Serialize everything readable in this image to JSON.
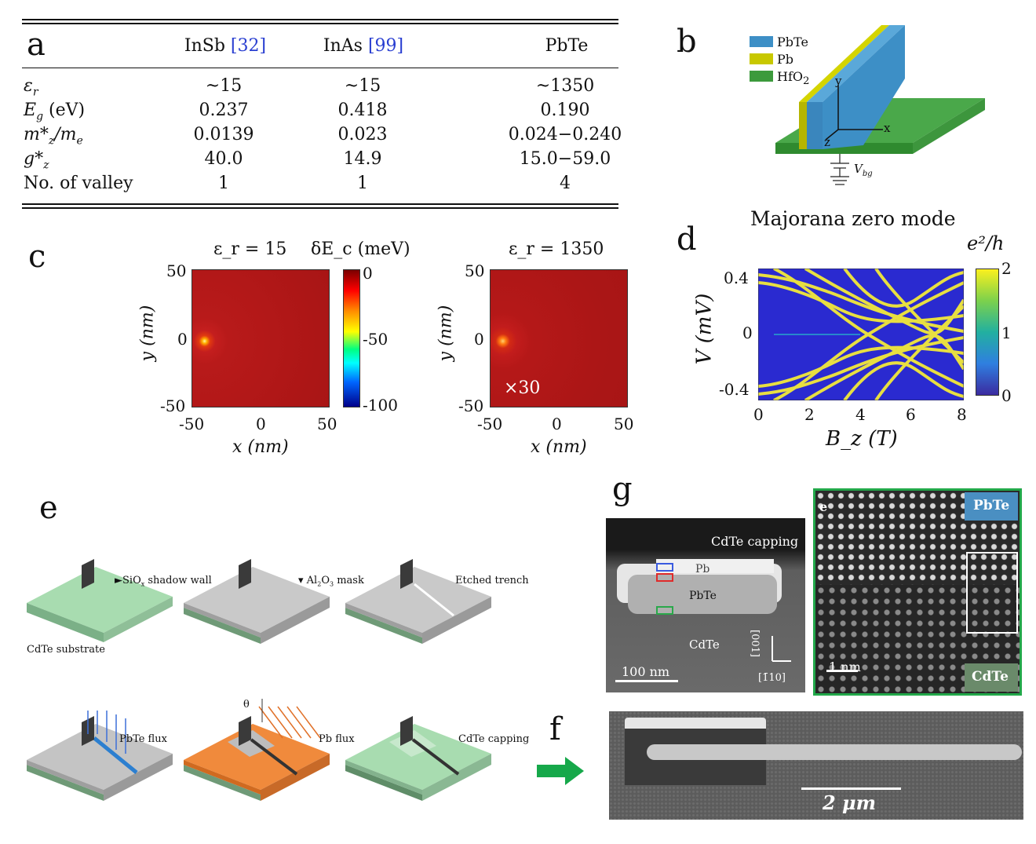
{
  "panel_a": {
    "letter": "a",
    "headers": [
      "InSb",
      "[32]",
      "InAs",
      "[99]",
      "PbTe"
    ],
    "rows": [
      {
        "label": "ε",
        "sub": "r",
        "tail": "",
        "v1": "~15",
        "v2": "~15",
        "v3": "~1350"
      },
      {
        "label": "E",
        "sub": "g",
        "tail": " (eV)",
        "v1": "0.237",
        "v2": "0.418",
        "v3": "0.190"
      },
      {
        "label": "m*",
        "sub": "z",
        "tail": "/m",
        "tail_sub": "e",
        "v1": "0.0139",
        "v2": "0.023",
        "v3": "0.024−0.240"
      },
      {
        "label": "g*",
        "sub": "z",
        "tail": "",
        "v1": "40.0",
        "v2": "14.9",
        "v3": "15.0−59.0"
      },
      {
        "label": "No. of valley",
        "sub": "",
        "tail": "",
        "v1": "1",
        "v2": "1",
        "v3": "4"
      }
    ]
  },
  "panel_b": {
    "letter": "b",
    "legend": [
      "PbTe",
      "Pb",
      "HfO",
      "2"
    ],
    "axes": [
      "y",
      "x",
      "z"
    ],
    "gate": "V",
    "gate_sub": "bg",
    "colors": {
      "pbte": "#3d8fc6",
      "pb": "#c8c800",
      "hfo2": "#3c9a3c"
    }
  },
  "panel_c": {
    "letter": "c",
    "left_title": "ε_r = 15",
    "right_title": "ε_r = 1350",
    "cbar_title": "δE_c (meV)",
    "cbar_ticks": [
      "0",
      "-50",
      "-100"
    ],
    "x_ticks": [
      "-50",
      "0",
      "50"
    ],
    "y_ticks": [
      "50",
      "0",
      "-50"
    ],
    "xlabel": "x (nm)",
    "ylabel": "y (nm)",
    "multiplier": "×30"
  },
  "panel_d": {
    "letter": "d",
    "title": "Majorana zero mode",
    "cbar_title": "e²/h",
    "cbar_ticks": [
      "2",
      "1",
      "0"
    ],
    "x_ticks": [
      "0",
      "2",
      "4",
      "6",
      "8"
    ],
    "y_ticks": [
      "0.4",
      "0",
      "-0.4"
    ],
    "xlabel": "B_z (T)",
    "ylabel": "V (mV)"
  },
  "panel_e": {
    "letter": "e",
    "labels": [
      "SiO",
      "x",
      " shadow wall",
      "CdTe substrate",
      "Al",
      "2",
      "O",
      "3",
      " mask",
      "Etched trench",
      "PbTe flux",
      "θ",
      "Pb flux",
      "CdTe capping"
    ]
  },
  "panel_f": {
    "letter": "f",
    "scale": "2 μm"
  },
  "panel_g": {
    "letter": "g",
    "left_labels": [
      "CdTe capping",
      "Pb",
      "PbTe",
      "CdTe",
      "100 nm",
      "[001]",
      "[1̄10]"
    ],
    "right_labels": [
      "e",
      "PbTe",
      "CdTe",
      "1 nm"
    ]
  }
}
